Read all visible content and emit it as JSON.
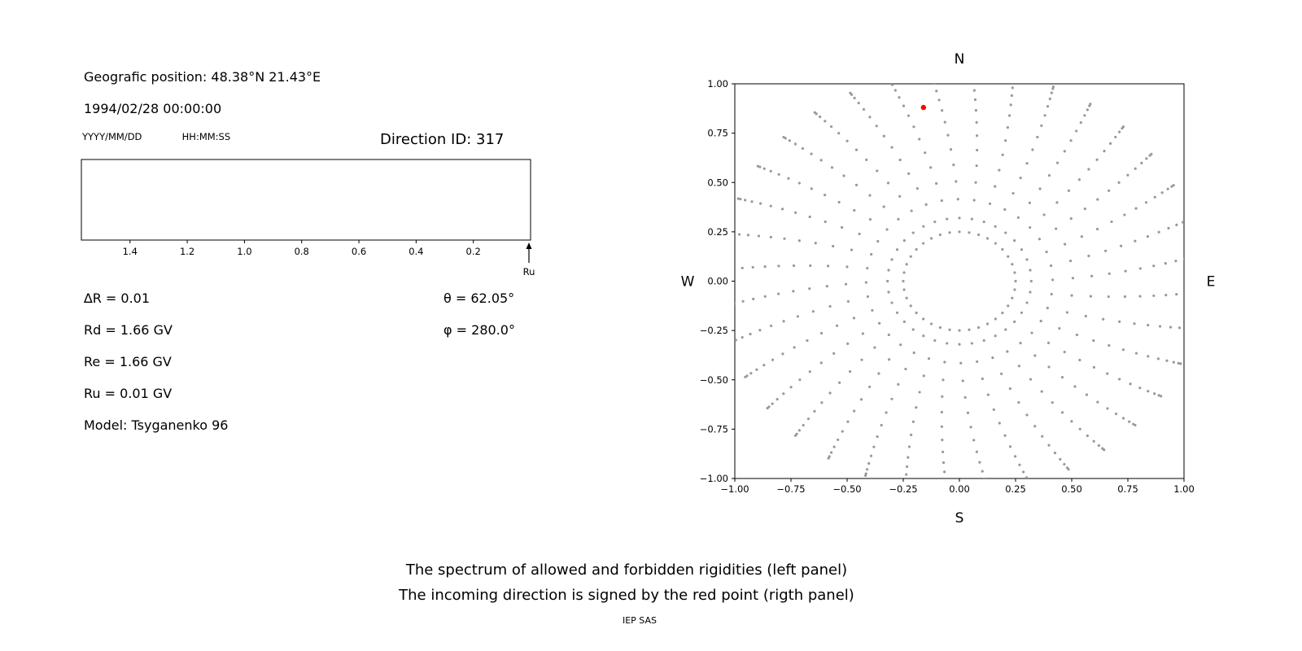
{
  "figure": {
    "caption_line1": "The spectrum of allowed and forbidden rigidities (left panel)",
    "caption_line2": "The incoming direction is signed by the red point (rigth panel)",
    "credit": "IEP SAS"
  },
  "left_panel": {
    "geo_position": "Geografic position: 48.38°N 21.43°E",
    "datetime": "1994/02/28 00:00:00",
    "date_format_hint": "YYYY/MM/DD",
    "time_format_hint": "HH:MM:SS",
    "direction_id": "Direction ID: 317",
    "delta_r": "∆R = 0.01",
    "rd": "Rd = 1.66 GV",
    "re": "Re = 1.66 GV",
    "ru": "Ru = 0.01 GV",
    "model": "Model: Tsyganenko 96",
    "theta": "θ = 62.05°",
    "phi": "φ = 280.0°"
  },
  "chart_data": [
    {
      "type": "scatter",
      "panel": "left-rigidity-spectrum",
      "points": [],
      "xlim": [
        1.57,
        0.0
      ],
      "xticks": [
        1.4,
        1.2,
        1.0,
        0.8,
        0.6,
        0.4,
        0.2
      ],
      "xtick_labels": [
        "1.4",
        "1.2",
        "1.0",
        "0.8",
        "0.6",
        "0.4",
        "0.2"
      ],
      "xlabel": "",
      "ylabel": "",
      "arrow_label": "Ru",
      "note": "Empty axes frame (no spectrum segments drawn); upward arrow labeled Ru at the right end of the x-axis"
    },
    {
      "type": "scatter",
      "panel": "right-incoming-direction-map",
      "xlim": [
        -1.0,
        1.0
      ],
      "ylim": [
        -1.0,
        1.0
      ],
      "xticks": [
        -1.0,
        -0.75,
        -0.5,
        -0.25,
        0.0,
        0.25,
        0.5,
        0.75,
        1.0
      ],
      "xtick_labels": [
        "−1.00",
        "−0.75",
        "−0.50",
        "−0.25",
        "0.00",
        "0.25",
        "0.50",
        "0.75",
        "1.00"
      ],
      "yticks": [
        -1.0,
        -0.75,
        -0.5,
        -0.25,
        0.0,
        0.25,
        0.5,
        0.75,
        1.0
      ],
      "ytick_labels": [
        "−1.00",
        "−0.75",
        "−0.50",
        "−0.25",
        "0.00",
        "0.25",
        "0.50",
        "0.75",
        "1.00"
      ],
      "compass": {
        "north": "N",
        "south": "S",
        "east": "E",
        "west": "W"
      },
      "dot_color": "#999999",
      "red_point": {
        "x": -0.16,
        "y": 0.88,
        "color": "#ff0000"
      },
      "inner_ring": {
        "radius": 0.25,
        "count": 36
      },
      "rays": {
        "count": 36,
        "angle_step_deg": 10,
        "angle_offset_deg": 0,
        "r_start": 0.32,
        "r_end": 1.07,
        "points_per_ray": 14,
        "tip_cluster_power": 1.7,
        "curvature_deg": 7
      }
    }
  ]
}
